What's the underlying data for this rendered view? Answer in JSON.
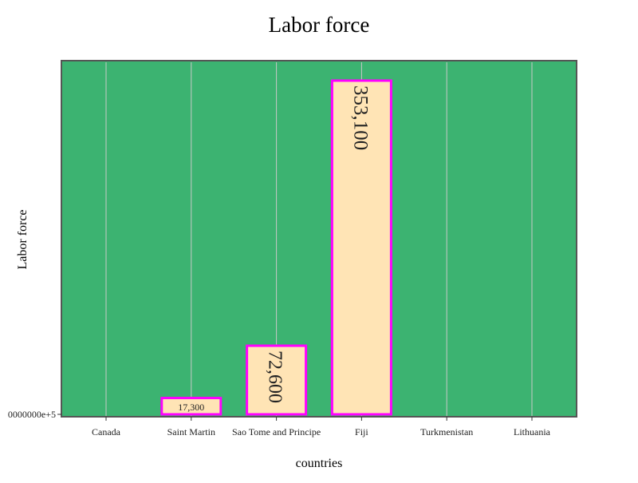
{
  "chart_data": {
    "type": "bar",
    "title": "Labor force",
    "xlabel": "countries",
    "ylabel": "Labor force",
    "categories": [
      "Canada",
      "Saint Martin",
      "Sao Tome and Principe",
      "Fiji",
      "Turkmenistan",
      "Lithuania"
    ],
    "series": [
      {
        "values": [
          null,
          17300,
          72600,
          353100,
          null,
          null
        ],
        "labels": [
          "",
          "17,300",
          "72,600",
          "353,100",
          "",
          ""
        ]
      }
    ],
    "ylim": [
      0,
      373000
    ],
    "y_tick_label": "0000000e+5",
    "grid": {
      "x": true,
      "y": false
    },
    "colors": {
      "plot_background": "#3cb371",
      "bar_fill": "#ffe4b5",
      "bar_stroke": "#ff00ff",
      "grid": "#c8c8c8",
      "axis": "#555555"
    }
  }
}
